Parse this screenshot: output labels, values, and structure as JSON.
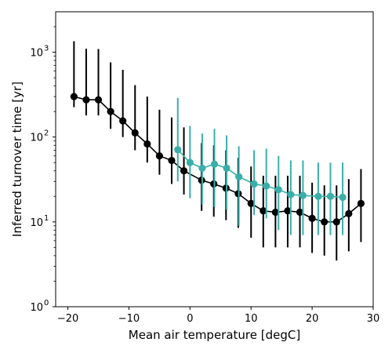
{
  "chart_data": {
    "type": "line",
    "title": "",
    "xlabel": "Mean air temperature [degC]",
    "ylabel": "Inferred turnover time [yr]",
    "xlim": [
      -22,
      30
    ],
    "ylim": [
      1,
      3000
    ],
    "y_scale": "log",
    "grid": false,
    "legend": "none",
    "x_ticks": [
      -20,
      -10,
      0,
      10,
      20,
      30
    ],
    "x_tick_labels": [
      "−20",
      "−10",
      "0",
      "10",
      "20",
      "30"
    ],
    "y_ticks": [
      1,
      10,
      100,
      1000
    ],
    "y_tick_labels": [
      "10",
      "10",
      "10",
      "10"
    ],
    "y_tick_exponents": [
      "0",
      "1",
      "2",
      "3"
    ],
    "series": [
      {
        "color": "#000000",
        "x": [
          -19,
          -17,
          -15,
          -13,
          -11,
          -9,
          -7,
          -5,
          -3,
          -1,
          1.9,
          3.9,
          5.9,
          7.9,
          10,
          12,
          14,
          16,
          18,
          20,
          22,
          24,
          26,
          28
        ],
        "y": [
          300,
          275,
          275,
          200,
          155,
          112,
          83,
          60,
          53,
          40,
          31,
          28,
          25,
          21.5,
          16.5,
          13.5,
          13,
          13.5,
          13,
          11,
          10,
          10,
          12.5,
          16.5
        ],
        "y_low": [
          225,
          180,
          180,
          125,
          100,
          70,
          50,
          36,
          28,
          21,
          13.5,
          11.5,
          10.5,
          8.5,
          6.5,
          5,
          5,
          5,
          5,
          4.3,
          4,
          3.5,
          4.5,
          5.8
        ],
        "y_high": [
          1350,
          1100,
          1090,
          760,
          620,
          410,
          300,
          210,
          170,
          130,
          85,
          80,
          70,
          57,
          45,
          35,
          35,
          35,
          35,
          29,
          27,
          27,
          32,
          42
        ]
      },
      {
        "color": "#3aafa9",
        "x": [
          -2,
          0,
          2,
          4,
          6,
          8,
          10.5,
          12.5,
          14.5,
          16.5,
          18.5,
          21,
          23,
          25
        ],
        "y": [
          71,
          50,
          43,
          48,
          43,
          34,
          28,
          26.5,
          24,
          21,
          20.5,
          20,
          20,
          19.5
        ],
        "y_low": [
          30,
          19,
          16,
          15,
          14,
          9,
          12,
          11,
          8,
          7,
          7,
          7,
          7,
          7
        ],
        "y_high": [
          290,
          135,
          110,
          125,
          105,
          78,
          70,
          73,
          60,
          53,
          53,
          50,
          50,
          50
        ]
      }
    ]
  }
}
